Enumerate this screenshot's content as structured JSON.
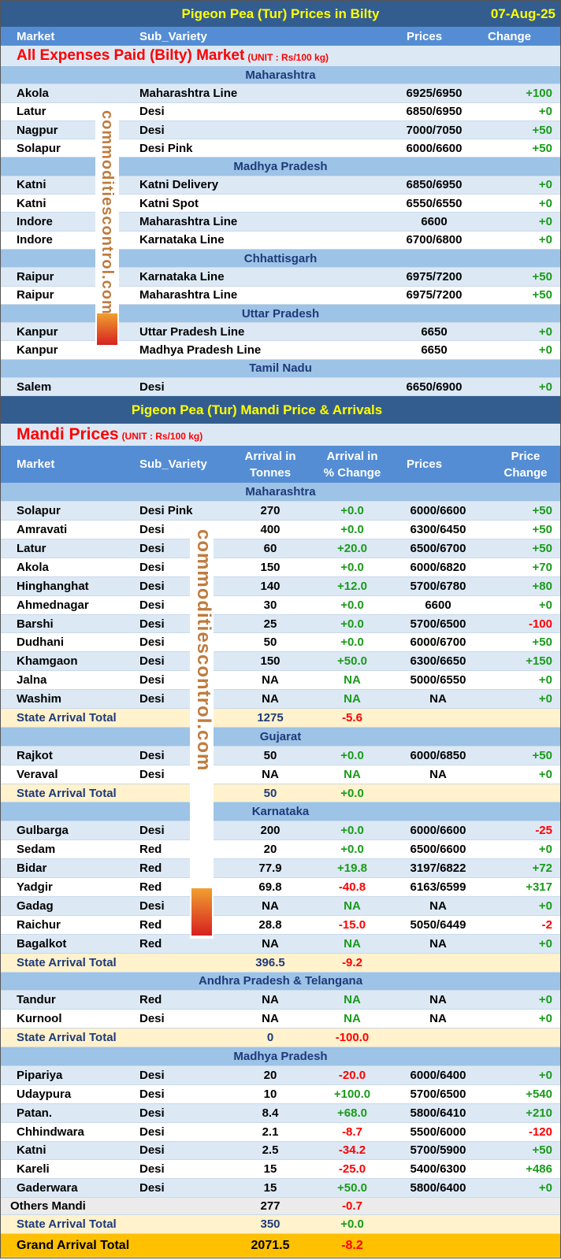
{
  "bilty": {
    "title": "Pigeon Pea (Tur) Prices in Bilty",
    "date": "07-Aug-25",
    "headers": {
      "market": "Market",
      "variety": "Sub_Variety",
      "prices": "Prices",
      "change": "Change"
    },
    "subtitle": "All Expenses Paid (Bilty) Market",
    "unit": "(UNIT : Rs/100 kg)",
    "sections": [
      {
        "state": "Maharashtra",
        "rows": [
          [
            "Akola",
            "Maharashtra Line",
            "6925/6950",
            "+100"
          ],
          [
            "Latur",
            "Desi",
            "6850/6950",
            "+0"
          ],
          [
            "Nagpur",
            "Desi",
            "7000/7050",
            "+50"
          ],
          [
            "Solapur",
            "Desi Pink",
            "6000/6600",
            "+50"
          ]
        ]
      },
      {
        "state": "Madhya Pradesh",
        "rows": [
          [
            "Katni",
            "Katni Delivery",
            "6850/6950",
            "+0"
          ],
          [
            "Katni",
            "Katni Spot",
            "6550/6550",
            "+0"
          ],
          [
            "Indore",
            "Maharashtra Line",
            "6600",
            "+0"
          ],
          [
            "Indore",
            "Karnataka Line",
            "6700/6800",
            "+0"
          ]
        ]
      },
      {
        "state": "Chhattisgarh",
        "rows": [
          [
            "Raipur",
            "Karnataka Line",
            "6975/7200",
            "+50"
          ],
          [
            "Raipur",
            "Maharashtra Line",
            "6975/7200",
            "+50"
          ]
        ]
      },
      {
        "state": "Uttar Pradesh",
        "rows": [
          [
            "Kanpur",
            "Uttar Pradesh Line",
            "6650",
            "+0"
          ],
          [
            "Kanpur",
            "Madhya Pradesh Line",
            "6650",
            "+0"
          ]
        ]
      },
      {
        "state": "Tamil Nadu",
        "rows": [
          [
            "Salem",
            "Desi",
            "6650/6900",
            "+0"
          ]
        ]
      }
    ]
  },
  "mandi": {
    "title": "Pigeon Pea (Tur) Mandi Price & Arrivals",
    "subtitle": "Mandi Prices",
    "unit": "(UNIT : Rs/100 kg)",
    "headers": {
      "market": "Market",
      "variety": "Sub_Variety",
      "arrival_1": "Arrival in",
      "arrival_2": "Tonnes",
      "pct_1": "Arrival  in",
      "pct_2": "% Change",
      "prices": "Prices",
      "change_1": "Price",
      "change_2": "Change"
    },
    "sections": [
      {
        "state": "Maharashtra",
        "rows": [
          [
            "Solapur",
            "Desi Pink",
            "270",
            "+0.0",
            "6000/6600",
            "+50"
          ],
          [
            "Amravati",
            "Desi",
            "400",
            "+0.0",
            "6300/6450",
            "+50"
          ],
          [
            "Latur",
            "Desi",
            "60",
            "+20.0",
            "6500/6700",
            "+50"
          ],
          [
            "Akola",
            "Desi",
            "150",
            "+0.0",
            "6000/6820",
            "+70"
          ],
          [
            "Hinghanghat",
            "Desi",
            "140",
            "+12.0",
            "5700/6780",
            "+80"
          ],
          [
            "Ahmednagar",
            "Desi",
            "30",
            "+0.0",
            "6600",
            "+0"
          ],
          [
            "Barshi",
            "Desi",
            "25",
            "+0.0",
            "5700/6500",
            "-100"
          ],
          [
            "Dudhani",
            "Desi",
            "50",
            "+0.0",
            "6000/6700",
            "+50"
          ],
          [
            "Khamgaon",
            "Desi",
            "150",
            "+50.0",
            "6300/6650",
            "+150"
          ],
          [
            "Jalna",
            "Desi",
            "NA",
            "NA",
            "5000/6550",
            "+0"
          ],
          [
            "Washim",
            "Desi",
            "NA",
            "NA",
            "NA",
            "+0"
          ]
        ],
        "total": {
          "label": "State Arrival Total",
          "arrival": "1275",
          "pct": "-5.6"
        }
      },
      {
        "state": "Gujarat",
        "rows": [
          [
            "Rajkot",
            "Desi",
            "50",
            "+0.0",
            "6000/6850",
            "+50"
          ],
          [
            "Veraval",
            "Desi",
            "NA",
            "NA",
            "NA",
            "+0"
          ]
        ],
        "total": {
          "label": "State Arrival Total",
          "arrival": "50",
          "pct": "+0.0"
        }
      },
      {
        "state": "Karnataka",
        "rows": [
          [
            "Gulbarga",
            "Desi",
            "200",
            "+0.0",
            "6000/6600",
            "-25"
          ],
          [
            "Sedam",
            "Red",
            "20",
            "+0.0",
            "6500/6600",
            "+0"
          ],
          [
            "Bidar",
            "Red",
            "77.9",
            "+19.8",
            "3197/6822",
            "+72"
          ],
          [
            "Yadgir",
            "Red",
            "69.8",
            "-40.8",
            "6163/6599",
            "+317"
          ],
          [
            "Gadag",
            "Desi",
            "NA",
            "NA",
            "NA",
            "+0"
          ],
          [
            "Raichur",
            "Red",
            "28.8",
            "-15.0",
            "5050/6449",
            "-2"
          ],
          [
            "Bagalkot",
            "Red",
            "NA",
            "NA",
            "NA",
            "+0"
          ]
        ],
        "total": {
          "label": "State Arrival Total",
          "arrival": "396.5",
          "pct": "-9.2"
        }
      },
      {
        "state": "Andhra Pradesh & Telangana",
        "rows": [
          [
            "Tandur",
            "Red",
            "NA",
            "NA",
            "NA",
            "+0"
          ],
          [
            "Kurnool",
            "Desi",
            "NA",
            "NA",
            "NA",
            "+0"
          ]
        ],
        "total": {
          "label": "State Arrival Total",
          "arrival": "0",
          "pct": "-100.0"
        }
      },
      {
        "state": "Madhya Pradesh",
        "rows": [
          [
            "Pipariya",
            "Desi",
            "20",
            "-20.0",
            "6000/6400",
            "+0"
          ],
          [
            "Udaypura",
            "Desi",
            "10",
            "+100.0",
            "5700/6500",
            "+540"
          ],
          [
            "Patan.",
            "Desi",
            "8.4",
            "+68.0",
            "5800/6410",
            "+210"
          ],
          [
            "Chhindwara",
            "Desi",
            "2.1",
            "-8.7",
            "5500/6000",
            "-120"
          ],
          [
            "Katni",
            "Desi",
            "2.5",
            "-34.2",
            "5700/5900",
            "+50"
          ],
          [
            "Kareli",
            "Desi",
            "15",
            "-25.0",
            "5400/6300",
            "+486"
          ],
          [
            "Gaderwara",
            "Desi",
            "15",
            "+50.0",
            "5800/6400",
            "+0"
          ]
        ],
        "others": {
          "label": "Others Mandi",
          "arrival": "277",
          "pct": "-0.7"
        },
        "total": {
          "label": "State Arrival Total",
          "arrival": "350",
          "pct": "+0.0"
        }
      }
    ],
    "grand": {
      "label": "Grand Arrival Total",
      "arrival": "2071.5",
      "pct": "-8.2"
    }
  },
  "watermark": "commoditiescontrol.com",
  "colors": {
    "title_bg": "#335d8f",
    "title_text": "#ffff00",
    "header_bg": "#548dd4",
    "state_bg": "#9dc3e6",
    "positive": "#1a9a1a",
    "negative": "#ff0000",
    "grand_bg": "#ffc000",
    "total_bg": "#fff2cc"
  }
}
